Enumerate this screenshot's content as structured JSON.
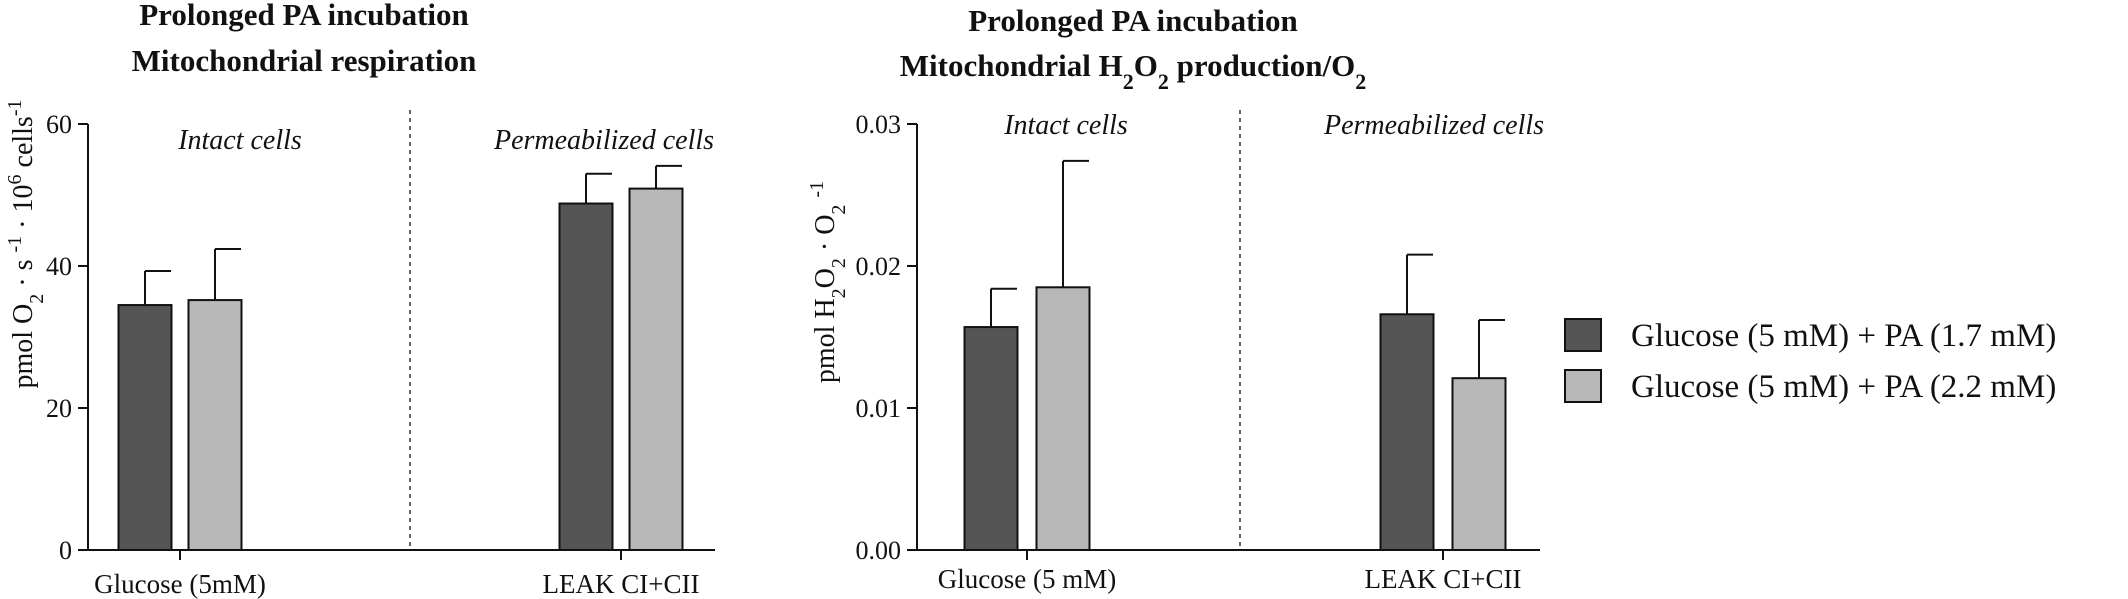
{
  "chart_data": [
    {
      "type": "bar",
      "title_lines": [
        "Prolonged PA incubation",
        "Mitochondrial respiration"
      ],
      "ylabel": {
        "base": "pmol O",
        "sub1": "2",
        "mid1": " · s ",
        "sup1": "-1",
        "mid2": " · 10",
        "sup2": "6",
        "mid3": " cells",
        "sup3": "-1"
      },
      "ylim": [
        0,
        60
      ],
      "yticks": [
        0,
        20,
        40,
        60
      ],
      "ytick_labels": [
        "0",
        "20",
        "40",
        "60"
      ],
      "categories": [
        "Glucose (5mM)",
        "LEAK CI+CII"
      ],
      "regions": [
        "Intact cells",
        "Permeabilized cells"
      ],
      "series": [
        {
          "name": "Glucose (5 mM) + PA (1.7 mM)",
          "values": [
            34.5,
            48.8
          ],
          "errors": [
            4.8,
            4.2
          ]
        },
        {
          "name": "Glucose (5 mM) + PA (2.2 mM)",
          "values": [
            35.2,
            50.9
          ],
          "errors": [
            7.2,
            3.2
          ]
        }
      ]
    },
    {
      "type": "bar",
      "title_lines": [
        "Prolonged PA incubation",
        "Mitochondrial H2O2 production/O2"
      ],
      "title2_parts": {
        "a": "Mitochondrial H",
        "s1": "2",
        "b": "O",
        "s2": "2",
        "c": " production/O",
        "s3": "2"
      },
      "ylabel": {
        "base": "pmol H",
        "sub1": "2",
        "mid1": "O",
        "sub2": "2",
        "mid2": " · O",
        "sub3": "2",
        "mid3": " ",
        "sup1": "-1"
      },
      "ylim": [
        0,
        0.03
      ],
      "yticks": [
        0,
        0.01,
        0.02,
        0.03
      ],
      "ytick_labels": [
        "0.00",
        "0.01",
        "0.02",
        "0.03"
      ],
      "categories": [
        "Glucose (5 mM)",
        "LEAK CI+CII"
      ],
      "regions": [
        "Intact cells",
        "Permeabilized cells"
      ],
      "series": [
        {
          "name": "Glucose (5 mM) + PA (1.7 mM)",
          "values": [
            0.0157,
            0.0166
          ],
          "errors": [
            0.0027,
            0.0042
          ]
        },
        {
          "name": "Glucose (5 mM) + PA (2.2 mM)",
          "values": [
            0.0185,
            0.0121
          ],
          "errors": [
            0.0089,
            0.0041
          ]
        }
      ]
    }
  ],
  "legend": {
    "items": [
      {
        "label": "Glucose (5 mM) + PA (1.7 mM)"
      },
      {
        "label": "Glucose (5 mM) + PA (2.2 mM)"
      }
    ]
  },
  "colors": {
    "series1": "#555555",
    "series2": "#b8b8b8",
    "stroke": "#111111"
  }
}
